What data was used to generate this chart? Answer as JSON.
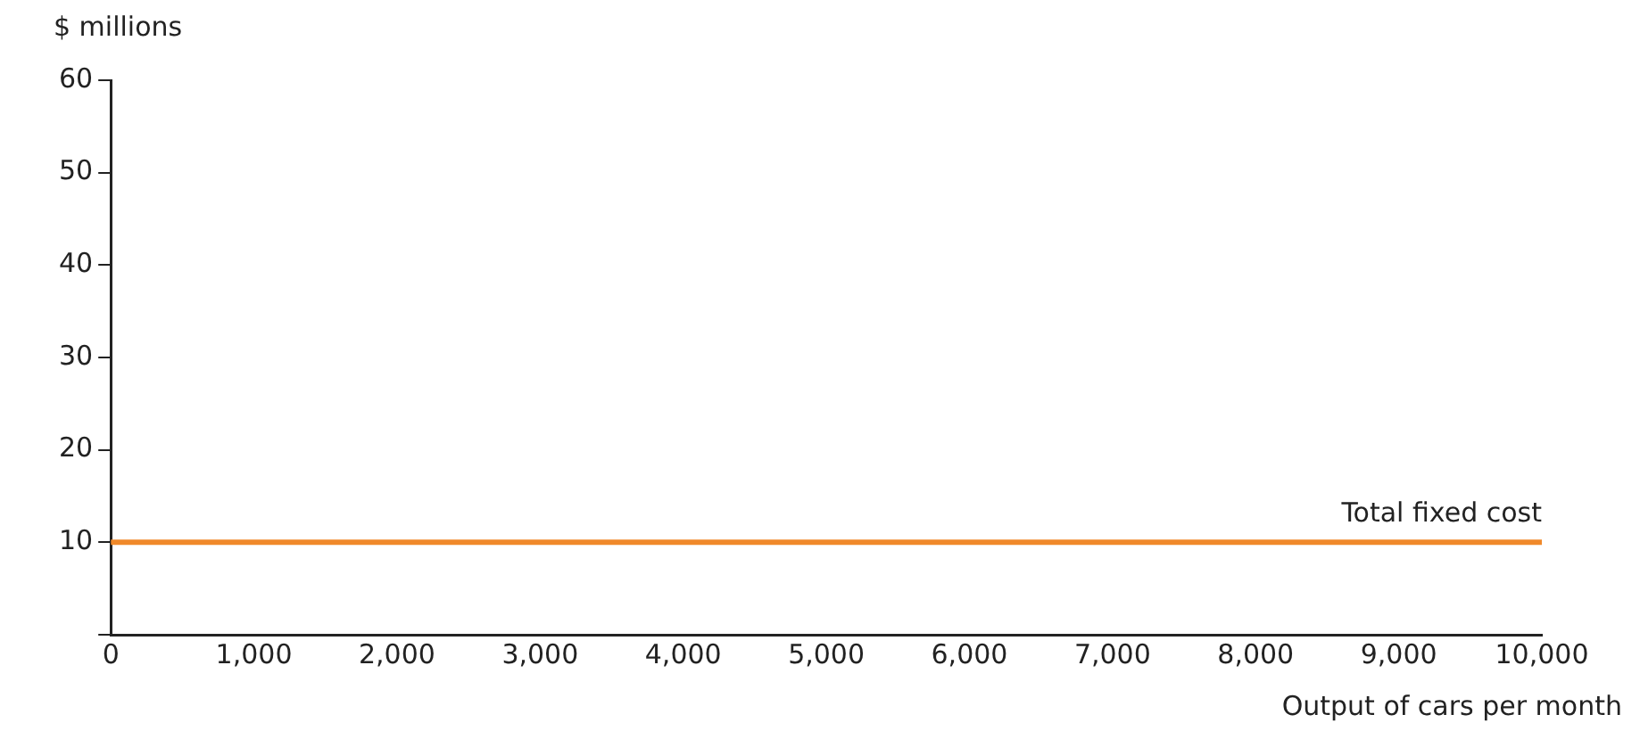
{
  "chart_data": {
    "type": "line",
    "ylabel": "$ millions",
    "xlabel": "Output of cars per month",
    "x": [
      0,
      10000
    ],
    "series": [
      {
        "name": "Total fixed cost",
        "color": "#f0892a",
        "values": [
          10,
          10
        ]
      }
    ],
    "xlim": [
      0,
      10000
    ],
    "xticks": [
      {
        "value": 0,
        "label": "0"
      },
      {
        "value": 1000,
        "label": "1,000"
      },
      {
        "value": 2000,
        "label": "2,000"
      },
      {
        "value": 3000,
        "label": "3,000"
      },
      {
        "value": 4000,
        "label": "4,000"
      },
      {
        "value": 5000,
        "label": "5,000"
      },
      {
        "value": 6000,
        "label": "6,000"
      },
      {
        "value": 7000,
        "label": "7,000"
      },
      {
        "value": 8000,
        "label": "8,000"
      },
      {
        "value": 9000,
        "label": "9,000"
      },
      {
        "value": 10000,
        "label": "10,000"
      }
    ],
    "ylim": [
      0,
      60
    ],
    "yticks": [
      {
        "value": 0,
        "label": null
      },
      10,
      20,
      30,
      40,
      50,
      60
    ],
    "grid": false,
    "legend": false,
    "marker": "none",
    "line_style": "solid"
  }
}
